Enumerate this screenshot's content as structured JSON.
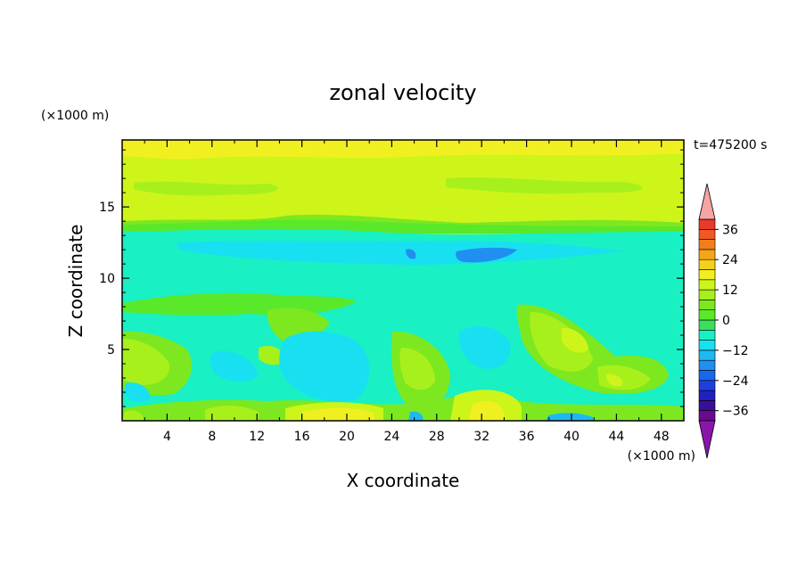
{
  "chart_data": {
    "type": "heatmap",
    "title": "zonal velocity",
    "xlabel": "X coordinate",
    "ylabel": "Z coordinate",
    "x_unit": "(×1000 m)",
    "y_unit": "(×1000 m)",
    "time_label": "t=475200 s",
    "xlim": [
      0,
      50
    ],
    "ylim": [
      0,
      19.7
    ],
    "x_ticks": [
      4,
      8,
      12,
      16,
      20,
      24,
      28,
      32,
      36,
      40,
      44,
      48
    ],
    "y_ticks": [
      5,
      10,
      15
    ],
    "colorbar": {
      "levels": [
        -40,
        -36,
        -32,
        -28,
        -24,
        -20,
        -16,
        -12,
        -8,
        -4,
        0,
        4,
        8,
        12,
        16,
        20,
        24,
        28,
        32,
        36,
        40
      ],
      "colors": [
        "#6a0a8f",
        "#3a0f96",
        "#2020c0",
        "#1f3fe0",
        "#1a66ee",
        "#1f8ff0",
        "#1fb9f2",
        "#18e0f0",
        "#19f0c4",
        "#3ae05a",
        "#5ae82a",
        "#7de81f",
        "#a8f01c",
        "#cdf51a",
        "#f0f020",
        "#f5d11a",
        "#f5a51a",
        "#f07f1a",
        "#ef5a22",
        "#e83a28"
      ],
      "tick_labels": [
        "36",
        "24",
        "12",
        "0",
        "−12",
        "−24",
        "−36"
      ],
      "extend_low_color": "#8a15a8",
      "extend_high_color": "#f4a5a5"
    }
  }
}
